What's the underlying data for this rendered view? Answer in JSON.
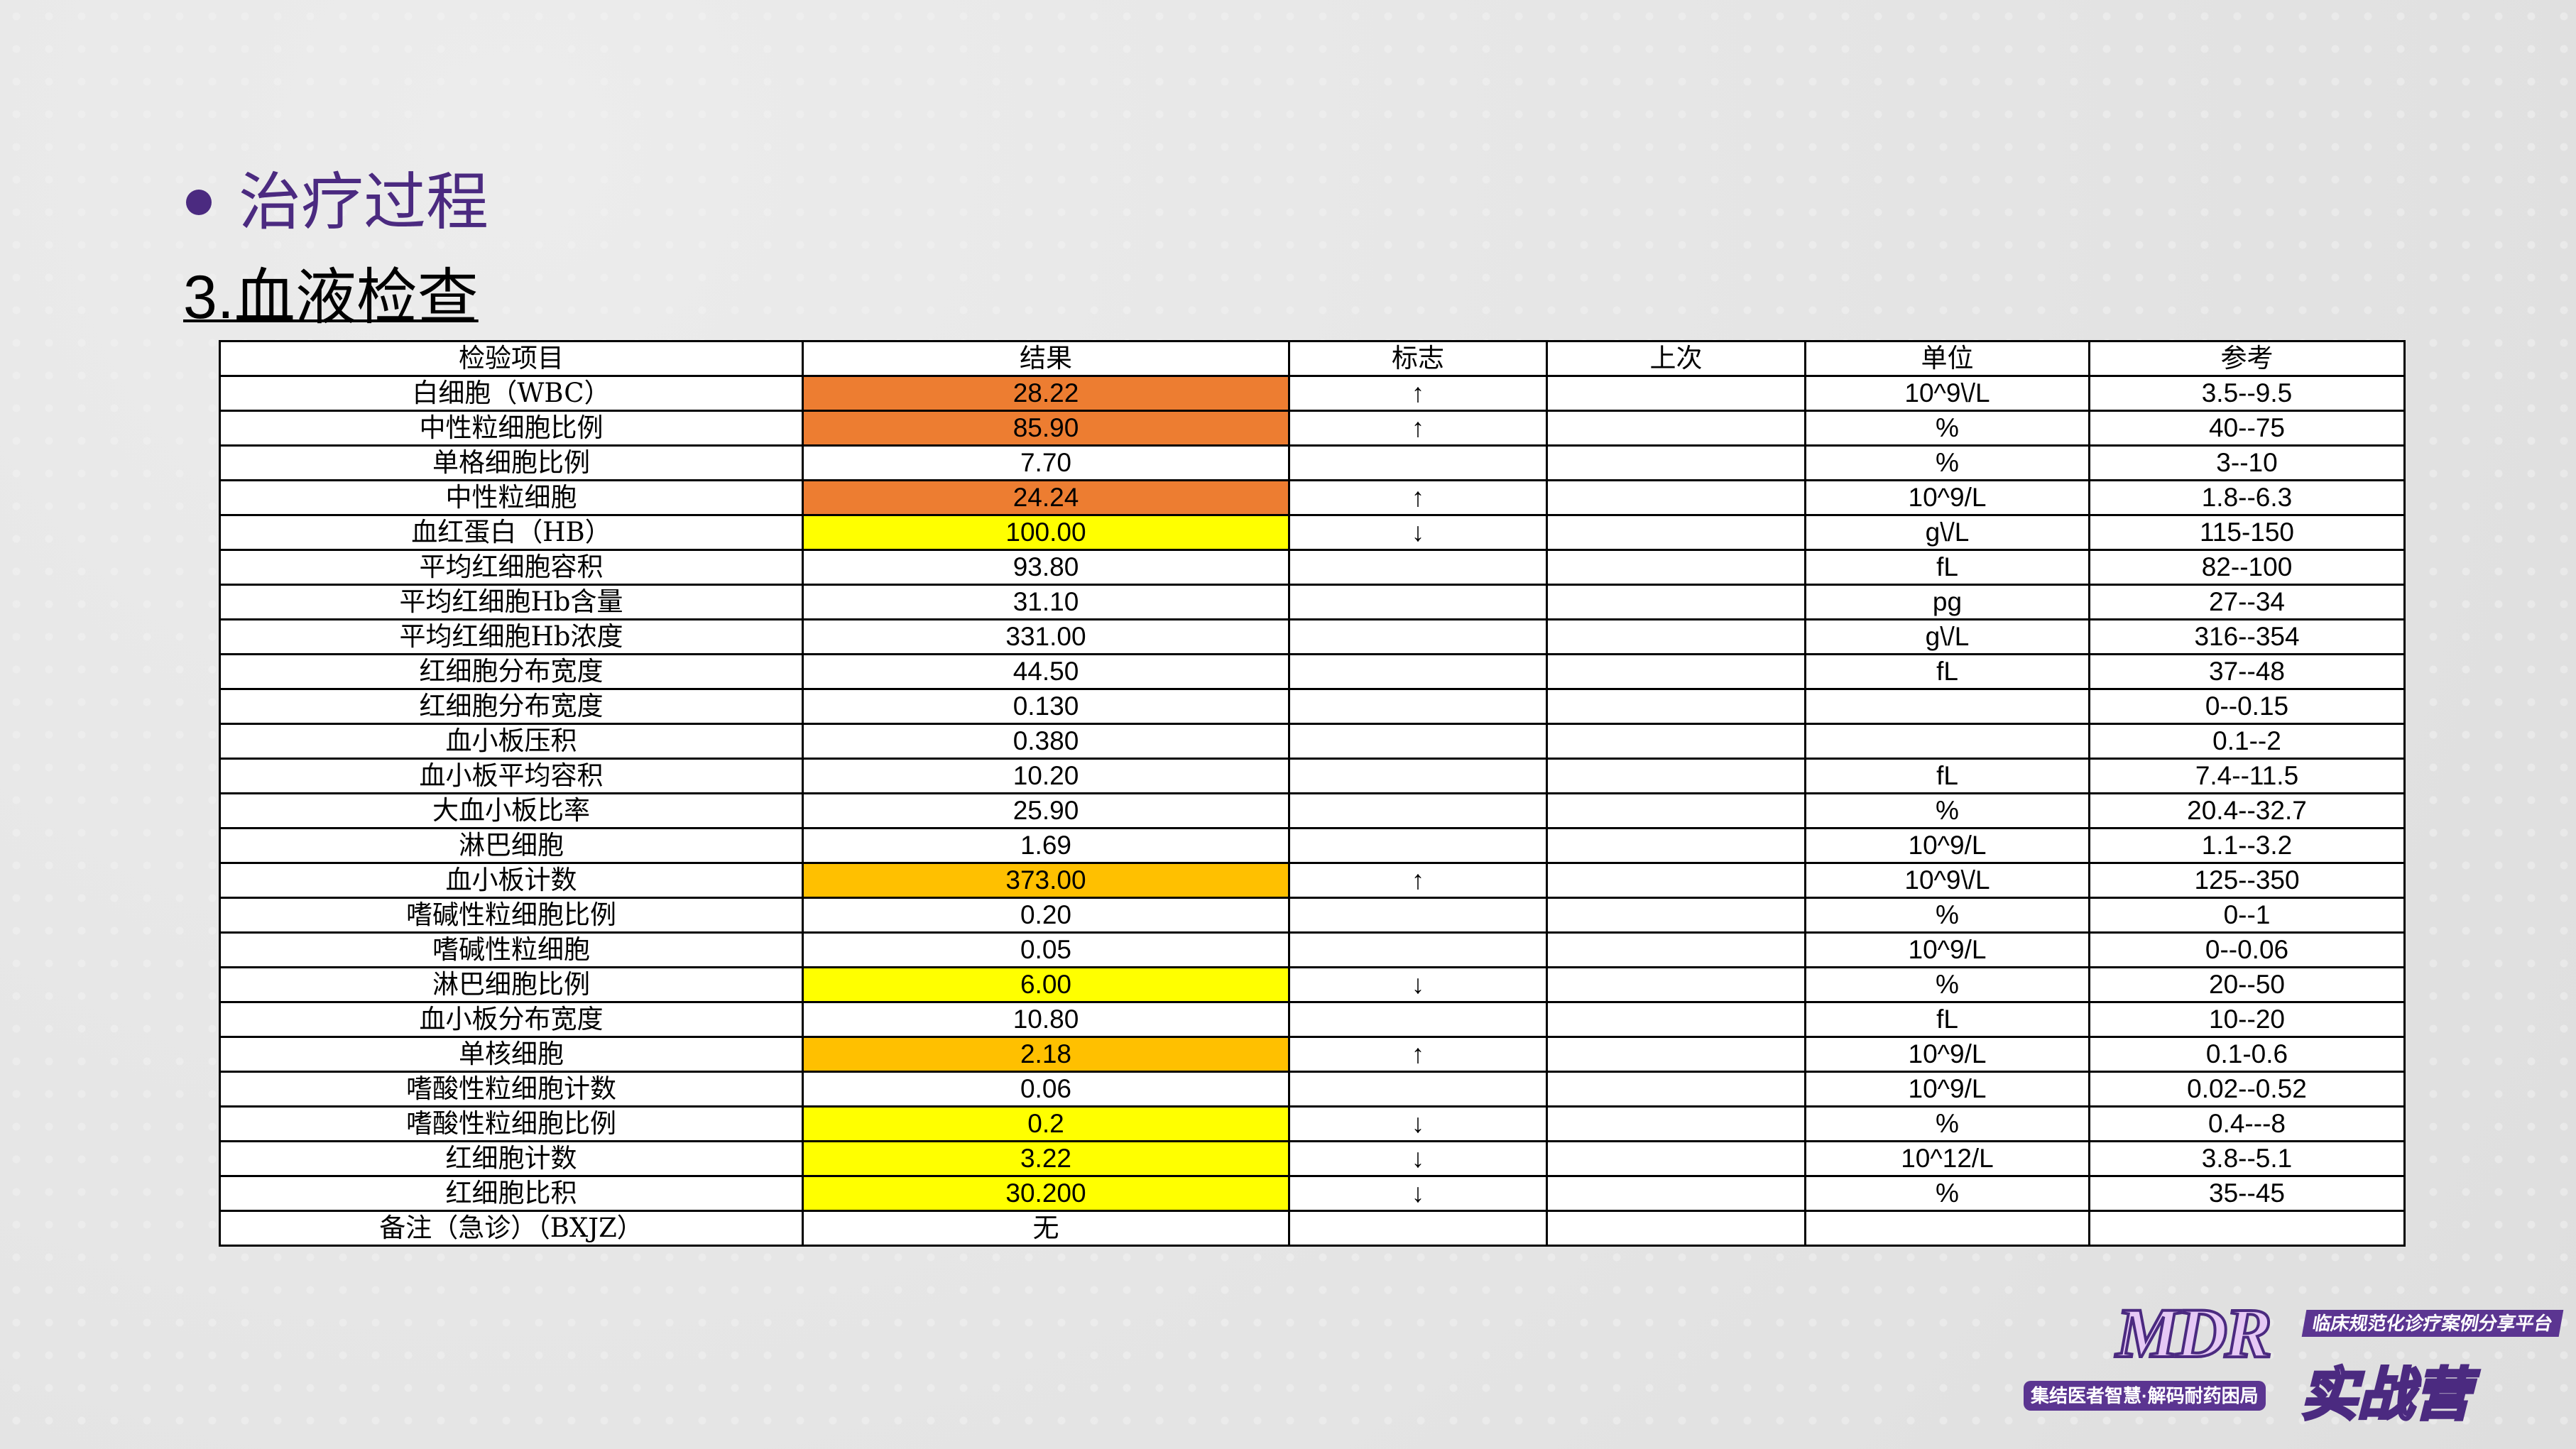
{
  "heading": "治疗过程",
  "subheading": "3.血液检查",
  "colors": {
    "title": "#4b2a80",
    "high": "#ed7d31",
    "medium": "#ffc000",
    "low": "#ffff00"
  },
  "table": {
    "headers": [
      "检验项目",
      "结果",
      "标志",
      "上次",
      "单位",
      "参考"
    ],
    "rows": [
      {
        "item": "白细胞（WBC）",
        "result": "28.22",
        "flag": "↑",
        "last": "",
        "unit": "10^9\\/L",
        "ref": "3.5--9.5",
        "hl": "high"
      },
      {
        "item": "中性粒细胞比例",
        "result": "85.90",
        "flag": "↑",
        "last": "",
        "unit": "%",
        "ref": "40--75",
        "hl": "high"
      },
      {
        "item": "单格细胞比例",
        "result": "7.70",
        "flag": "",
        "last": "",
        "unit": "%",
        "ref": "3--10",
        "hl": ""
      },
      {
        "item": "中性粒细胞",
        "result": "24.24",
        "flag": "↑",
        "last": "",
        "unit": "10^9/L",
        "ref": "1.8--6.3",
        "hl": "high"
      },
      {
        "item": "血红蛋白（HB）",
        "result": "100.00",
        "flag": "↓",
        "last": "",
        "unit": "g\\/L",
        "ref": "115-150",
        "hl": "low"
      },
      {
        "item": "平均红细胞容积",
        "result": "93.80",
        "flag": "",
        "last": "",
        "unit": "fL",
        "ref": "82--100",
        "hl": ""
      },
      {
        "item": "平均红细胞Hb含量",
        "result": "31.10",
        "flag": "",
        "last": "",
        "unit": "pg",
        "ref": "27--34",
        "hl": ""
      },
      {
        "item": "平均红细胞Hb浓度",
        "result": "331.00",
        "flag": "",
        "last": "",
        "unit": "g\\/L",
        "ref": "316--354",
        "hl": ""
      },
      {
        "item": "红细胞分布宽度",
        "result": "44.50",
        "flag": "",
        "last": "",
        "unit": "fL",
        "ref": "37--48",
        "hl": ""
      },
      {
        "item": "红细胞分布宽度",
        "result": "0.130",
        "flag": "",
        "last": "",
        "unit": "",
        "ref": "0--0.15",
        "hl": ""
      },
      {
        "item": "血小板压积",
        "result": "0.380",
        "flag": "",
        "last": "",
        "unit": "",
        "ref": "0.1--2",
        "hl": ""
      },
      {
        "item": "血小板平均容积",
        "result": "10.20",
        "flag": "",
        "last": "",
        "unit": "fL",
        "ref": "7.4--11.5",
        "hl": ""
      },
      {
        "item": "大血小板比率",
        "result": "25.90",
        "flag": "",
        "last": "",
        "unit": "%",
        "ref": "20.4--32.7",
        "hl": ""
      },
      {
        "item": "淋巴细胞",
        "result": "1.69",
        "flag": "",
        "last": "",
        "unit": "10^9/L",
        "ref": "1.1--3.2",
        "hl": ""
      },
      {
        "item": "血小板计数",
        "result": "373.00",
        "flag": "↑",
        "last": "",
        "unit": "10^9\\/L",
        "ref": "125--350",
        "hl": "medium"
      },
      {
        "item": "嗜碱性粒细胞比例",
        "result": "0.20",
        "flag": "",
        "last": "",
        "unit": "%",
        "ref": "0--1",
        "hl": ""
      },
      {
        "item": "嗜碱性粒细胞",
        "result": "0.05",
        "flag": "",
        "last": "",
        "unit": "10^9/L",
        "ref": "0--0.06",
        "hl": ""
      },
      {
        "item": "淋巴细胞比例",
        "result": "6.00",
        "flag": "↓",
        "last": "",
        "unit": "%",
        "ref": "20--50",
        "hl": "low"
      },
      {
        "item": "血小板分布宽度",
        "result": "10.80",
        "flag": "",
        "last": "",
        "unit": "fL",
        "ref": "10--20",
        "hl": ""
      },
      {
        "item": "单核细胞",
        "result": "2.18",
        "flag": "↑",
        "last": "",
        "unit": "10^9/L",
        "ref": "0.1-0.6",
        "hl": "medium"
      },
      {
        "item": "嗜酸性粒细胞计数",
        "result": "0.06",
        "flag": "",
        "last": "",
        "unit": "10^9/L",
        "ref": "0.02--0.52",
        "hl": ""
      },
      {
        "item": "嗜酸性粒细胞比例",
        "result": "0.2",
        "flag": "↓",
        "last": "",
        "unit": "%",
        "ref": "0.4---8",
        "hl": "low"
      },
      {
        "item": "红细胞计数",
        "result": "3.22",
        "flag": "↓",
        "last": "",
        "unit": "10^12/L",
        "ref": "3.8--5.1",
        "hl": "low"
      },
      {
        "item": "红细胞比积",
        "result": "30.200",
        "flag": "↓",
        "last": "",
        "unit": "%",
        "ref": "35--45",
        "hl": "low"
      },
      {
        "item": "备注（急诊）（BXJZ）",
        "result": "无",
        "flag": "",
        "last": "",
        "unit": "",
        "ref": "",
        "hl": ""
      }
    ]
  },
  "logo": {
    "mdr": "MDR",
    "tagline": "临床规范化诊疗案例分享平台",
    "slogan": "集结医者智慧·解码耐药困局",
    "camp": "实战营"
  }
}
